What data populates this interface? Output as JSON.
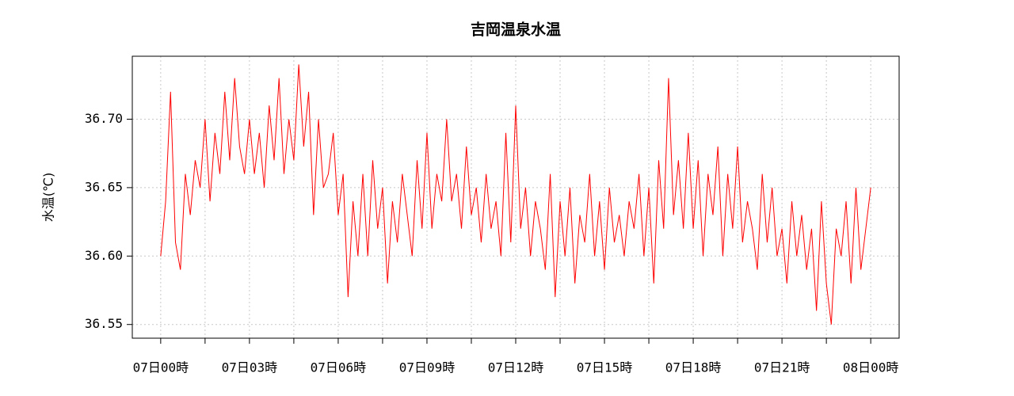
{
  "chart_data": {
    "type": "line",
    "title": "吉岡温泉水温",
    "y_label": "水温(℃)",
    "x": [
      0,
      10,
      20,
      30,
      40,
      50,
      60,
      70,
      80,
      90,
      100,
      110,
      120,
      130,
      140,
      150,
      160,
      170,
      180,
      190,
      200,
      210,
      220,
      230,
      240,
      250,
      260,
      270,
      280,
      290,
      300,
      310,
      320,
      330,
      340,
      350,
      360,
      370,
      380,
      390,
      400,
      410,
      420,
      430,
      440,
      450,
      460,
      470,
      480,
      490,
      500,
      510,
      520,
      530,
      540,
      550,
      560,
      570,
      580,
      590,
      600,
      610,
      620,
      630,
      640,
      650,
      660,
      670,
      680,
      690,
      700,
      710,
      720,
      730,
      740,
      750,
      760,
      770,
      780,
      790,
      800,
      810,
      820,
      830,
      840,
      850,
      860,
      870,
      880,
      890,
      900,
      910,
      920,
      930,
      940,
      950,
      960,
      970,
      980,
      990,
      1000,
      1010,
      1020,
      1030,
      1040,
      1050,
      1060,
      1070,
      1080,
      1090,
      1100,
      1110,
      1120,
      1130,
      1140,
      1150,
      1160,
      1170,
      1180,
      1190,
      1200,
      1210,
      1220,
      1230,
      1240,
      1250,
      1260,
      1270,
      1280,
      1290,
      1300,
      1310,
      1320,
      1330,
      1340,
      1350,
      1360,
      1370,
      1380,
      1390,
      1400,
      1410,
      1420,
      1430,
      1440
    ],
    "values": [
      36.6,
      36.64,
      36.72,
      36.61,
      36.59,
      36.66,
      36.63,
      36.67,
      36.65,
      36.7,
      36.64,
      36.69,
      36.66,
      36.72,
      36.67,
      36.73,
      36.68,
      36.66,
      36.7,
      36.66,
      36.69,
      36.65,
      36.71,
      36.67,
      36.73,
      36.66,
      36.7,
      36.67,
      36.74,
      36.68,
      36.72,
      36.63,
      36.7,
      36.65,
      36.66,
      36.69,
      36.63,
      36.66,
      36.57,
      36.64,
      36.6,
      36.66,
      36.6,
      36.67,
      36.62,
      36.65,
      36.58,
      36.64,
      36.61,
      36.66,
      36.63,
      36.6,
      36.67,
      36.62,
      36.69,
      36.62,
      36.66,
      36.64,
      36.7,
      36.64,
      36.66,
      36.62,
      36.68,
      36.63,
      36.65,
      36.61,
      36.66,
      36.62,
      36.64,
      36.6,
      36.69,
      36.61,
      36.71,
      36.62,
      36.65,
      36.6,
      36.64,
      36.62,
      36.59,
      36.66,
      36.57,
      36.64,
      36.6,
      36.65,
      36.58,
      36.63,
      36.61,
      36.66,
      36.6,
      36.64,
      36.59,
      36.65,
      36.61,
      36.63,
      36.6,
      36.64,
      36.62,
      36.66,
      36.6,
      36.65,
      36.58,
      36.67,
      36.62,
      36.73,
      36.63,
      36.67,
      36.62,
      36.69,
      36.62,
      36.67,
      36.6,
      36.66,
      36.63,
      36.68,
      36.6,
      36.66,
      36.62,
      36.68,
      36.61,
      36.64,
      36.62,
      36.59,
      36.66,
      36.61,
      36.65,
      36.6,
      36.62,
      36.58,
      36.64,
      36.6,
      36.63,
      36.59,
      36.62,
      36.56,
      36.64,
      36.58,
      36.55,
      36.62,
      36.6,
      36.64,
      36.58,
      36.65,
      36.59,
      36.62,
      36.65
    ],
    "color": "#ff0000",
    "xlim": [
      -57.6,
      1497.6
    ],
    "xticks": [
      {
        "value": 0,
        "label": "07日00時"
      },
      {
        "value": 180,
        "label": "07日03時"
      },
      {
        "value": 360,
        "label": "07日06時"
      },
      {
        "value": 540,
        "label": "07日09時"
      },
      {
        "value": 720,
        "label": "07日12時"
      },
      {
        "value": 900,
        "label": "07日15時"
      },
      {
        "value": 1080,
        "label": "07日18時"
      },
      {
        "value": 1260,
        "label": "07日21時"
      },
      {
        "value": 1440,
        "label": "08日00時"
      }
    ],
    "xminorticks": [
      90,
      270,
      450,
      630,
      810,
      990,
      1170,
      1350
    ],
    "ylim": [
      36.54,
      36.746
    ],
    "yticks": [
      36.55,
      {
        "value": 36.6,
        "label": "36.60"
      },
      36.65,
      {
        "value": 36.7,
        "label": "36.70"
      }
    ],
    "grid": true
  }
}
